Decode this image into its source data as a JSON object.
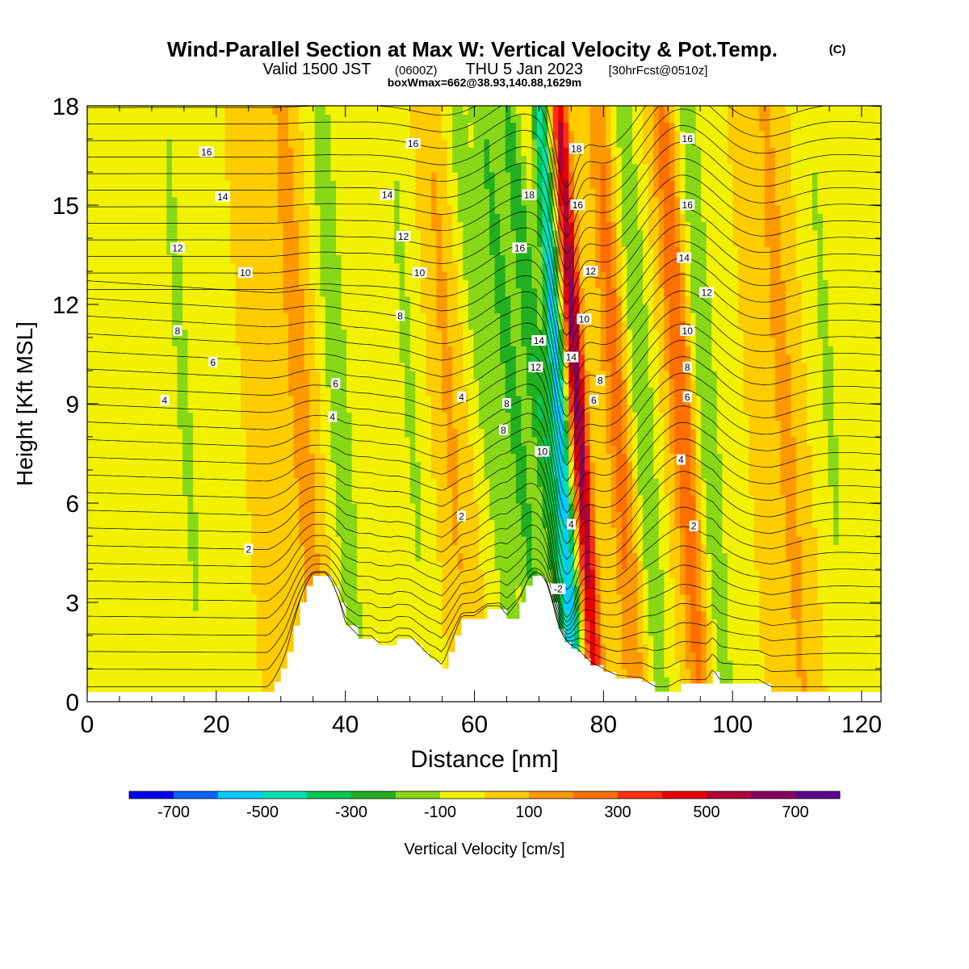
{
  "header": {
    "title": "Wind-Parallel Section at Max W: Vertical Velocity & Pot.Temp.",
    "title_mark": "(C)",
    "valid_prefix": "Valid 1500 JST",
    "valid_utc": "(0600Z)",
    "valid_date": "THU 5 Jan 2023",
    "forecast_note": "[30hrFcst@0510z]",
    "box_info": "boxWmax=662@38.93,140.88,1629m"
  },
  "chart_data": {
    "type": "heatmap",
    "title": "Wind-Parallel Section at Max W: Vertical Velocity & Pot.Temp.",
    "xlabel": "Distance [nm]",
    "ylabel": "Height [Kft MSL]",
    "xlim": [
      0,
      123
    ],
    "ylim": [
      0,
      18
    ],
    "x_ticks": [
      0,
      20,
      40,
      60,
      80,
      100,
      120
    ],
    "y_ticks": [
      0,
      3,
      6,
      9,
      12,
      15,
      18
    ],
    "grid": false,
    "colorbar": {
      "label": "Vertical Velocity [cm/s]",
      "placement": "bottom",
      "levels": [
        -800,
        -700,
        -600,
        -500,
        -400,
        -300,
        -200,
        -100,
        0,
        100,
        200,
        300,
        400,
        500,
        600,
        700,
        800
      ],
      "tick_labels": [
        "-700",
        "-500",
        "-300",
        "-100",
        "100",
        "300",
        "500",
        "700"
      ],
      "tick_values": [
        -700,
        -500,
        -300,
        -100,
        100,
        300,
        500,
        700
      ],
      "colors": [
        "#0000ee",
        "#0066ff",
        "#00ccff",
        "#00e0b0",
        "#00c850",
        "#22b022",
        "#88d818",
        "#f2f200",
        "#ffcc00",
        "#ff9900",
        "#ff7000",
        "#ff3010",
        "#e80000",
        "#b00038",
        "#880060",
        "#5a008c"
      ]
    },
    "velocity_features": [
      {
        "x": 76.0,
        "w_cm_s": 650
      },
      {
        "x": 73.0,
        "w_cm_s": -550
      },
      {
        "x": 70.0,
        "w_cm_s": -300
      },
      {
        "x": 66.0,
        "w_cm_s": -250
      },
      {
        "x": 62.0,
        "w_cm_s": -180
      },
      {
        "x": 82.0,
        "w_cm_s": 250
      },
      {
        "x": 86.0,
        "w_cm_s": -200
      },
      {
        "x": 92.0,
        "w_cm_s": 300
      },
      {
        "x": 96.0,
        "w_cm_s": -200
      },
      {
        "x": 39.0,
        "w_cm_s": -200
      },
      {
        "x": 33.0,
        "w_cm_s": 180
      },
      {
        "x": 15.0,
        "w_cm_s": -130
      },
      {
        "x": 108.0,
        "w_cm_s": 150
      },
      {
        "x": 115.0,
        "w_cm_s": -120
      },
      {
        "x": 50.0,
        "w_cm_s": -120
      },
      {
        "x": 56.0,
        "w_cm_s": 120
      }
    ],
    "terrain": {
      "x": [
        0,
        28,
        29,
        30,
        31,
        32,
        33,
        34,
        35,
        36,
        37,
        38,
        39,
        40,
        42,
        44,
        45,
        47,
        48,
        50,
        51,
        52,
        53,
        54,
        55,
        56,
        57,
        58,
        60,
        62,
        64,
        65,
        67,
        68,
        69,
        70,
        71,
        72,
        73,
        74,
        75,
        76,
        77,
        78,
        80,
        82,
        86,
        88,
        90,
        92,
        96,
        97,
        98,
        100,
        104,
        106,
        108,
        123
      ],
      "height_kft": [
        0.3,
        0.3,
        0.6,
        1.0,
        1.5,
        2.3,
        3.0,
        3.5,
        3.8,
        3.8,
        3.8,
        3.5,
        3.0,
        2.3,
        1.9,
        1.9,
        1.7,
        1.7,
        1.9,
        1.9,
        1.7,
        1.5,
        1.3,
        1.2,
        1.0,
        1.5,
        2.0,
        2.5,
        2.5,
        2.8,
        2.8,
        2.5,
        3.0,
        3.5,
        3.8,
        3.8,
        3.6,
        3.0,
        2.2,
        1.8,
        1.6,
        1.5,
        1.3,
        1.1,
        0.9,
        0.7,
        0.6,
        0.3,
        0.3,
        0.55,
        0.55,
        0.9,
        0.55,
        0.55,
        0.55,
        0.3,
        0.3,
        0.3
      ]
    },
    "theta_contours": {
      "units": "C",
      "levels": [
        -2,
        2,
        4,
        6,
        8,
        10,
        12,
        14,
        16,
        18
      ],
      "labels": [
        {
          "value": "16",
          "x": 18.5,
          "y": 16.6
        },
        {
          "value": "14",
          "x": 21,
          "y": 15.25
        },
        {
          "value": "12",
          "x": 14,
          "y": 13.7
        },
        {
          "value": "10",
          "x": 24.5,
          "y": 12.95
        },
        {
          "value": "8",
          "x": 14,
          "y": 11.2
        },
        {
          "value": "6",
          "x": 19.5,
          "y": 10.25
        },
        {
          "value": "4",
          "x": 12,
          "y": 9.1
        },
        {
          "value": "2",
          "x": 25,
          "y": 4.6
        },
        {
          "value": "16",
          "x": 50.5,
          "y": 16.85
        },
        {
          "value": "14",
          "x": 46.5,
          "y": 15.3
        },
        {
          "value": "12",
          "x": 49,
          "y": 14.05
        },
        {
          "value": "10",
          "x": 51.5,
          "y": 12.95
        },
        {
          "value": "8",
          "x": 48.5,
          "y": 11.65
        },
        {
          "value": "6",
          "x": 38.5,
          "y": 9.6
        },
        {
          "value": "4",
          "x": 38,
          "y": 8.6
        },
        {
          "value": "4",
          "x": 58,
          "y": 9.2
        },
        {
          "value": "2",
          "x": 58,
          "y": 5.6
        },
        {
          "value": "18",
          "x": 68.5,
          "y": 15.3
        },
        {
          "value": "16",
          "x": 67,
          "y": 13.7
        },
        {
          "value": "14",
          "x": 70,
          "y": 10.9
        },
        {
          "value": "12",
          "x": 69.5,
          "y": 10.1
        },
        {
          "value": "10",
          "x": 70.5,
          "y": 7.55
        },
        {
          "value": "8",
          "x": 65,
          "y": 9.0
        },
        {
          "value": "8",
          "x": 64.5,
          "y": 8.2
        },
        {
          "value": "18",
          "x": 75.8,
          "y": 16.7
        },
        {
          "value": "16",
          "x": 76,
          "y": 15.0
        },
        {
          "value": "12",
          "x": 78,
          "y": 13.0
        },
        {
          "value": "10",
          "x": 77,
          "y": 11.55
        },
        {
          "value": "14",
          "x": 75,
          "y": 10.4
        },
        {
          "value": "8",
          "x": 79.5,
          "y": 9.7
        },
        {
          "value": "6",
          "x": 78.5,
          "y": 9.1
        },
        {
          "value": "4",
          "x": 75,
          "y": 5.35
        },
        {
          "value": "-2",
          "x": 73,
          "y": 3.4
        },
        {
          "value": "16",
          "x": 93,
          "y": 17.0
        },
        {
          "value": "16",
          "x": 93,
          "y": 15.0
        },
        {
          "value": "14",
          "x": 92.5,
          "y": 13.4
        },
        {
          "value": "12",
          "x": 96,
          "y": 12.35
        },
        {
          "value": "10",
          "x": 93,
          "y": 11.2
        },
        {
          "value": "8",
          "x": 93,
          "y": 10.1
        },
        {
          "value": "6",
          "x": 93,
          "y": 9.2
        },
        {
          "value": "4",
          "x": 92,
          "y": 7.3
        },
        {
          "value": "2",
          "x": 94,
          "y": 5.3
        }
      ]
    }
  }
}
